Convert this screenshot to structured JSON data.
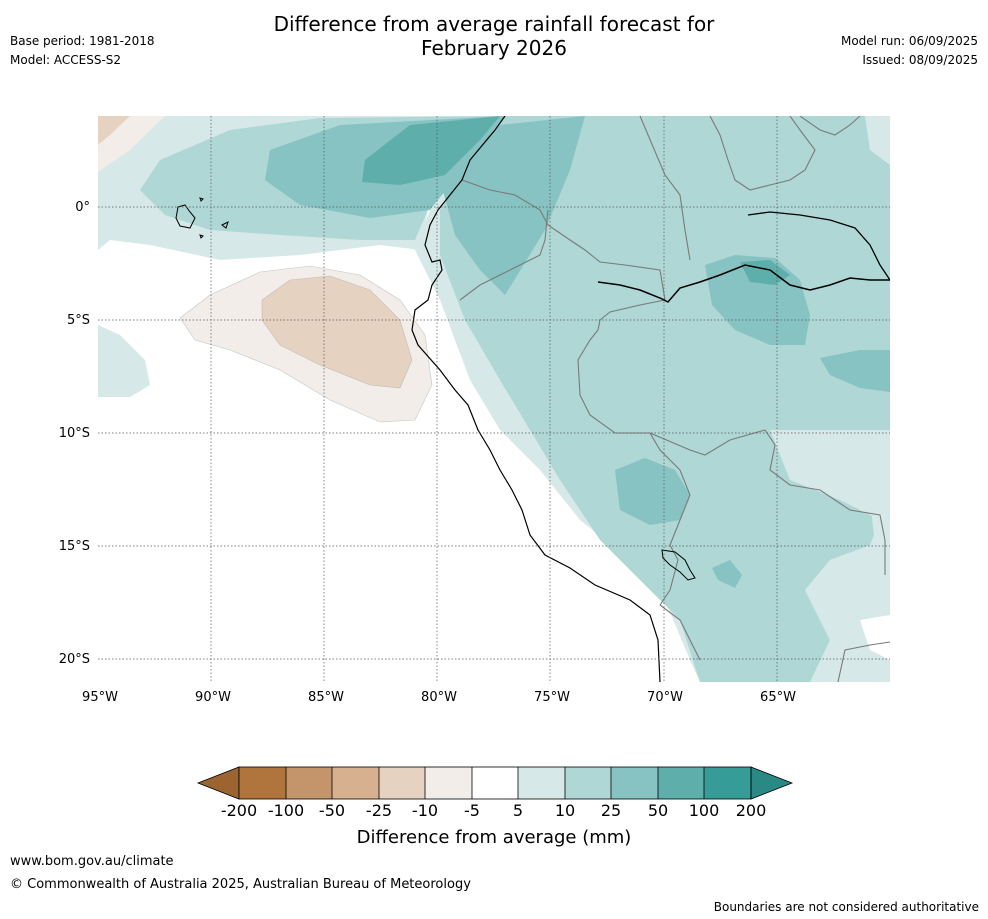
{
  "header": {
    "title_line1": "Difference from average rainfall forecast for",
    "title_line2": "February 2026",
    "base_period": "Base period: 1981-2018",
    "model": "Model: ACCESS-S2",
    "model_run": "Model run: 06/09/2025",
    "issued": "Issued: 08/09/2025"
  },
  "map": {
    "lon_labels": [
      "95°W",
      "90°W",
      "85°W",
      "80°W",
      "75°W",
      "70°W",
      "65°W"
    ],
    "lat_labels": [
      "0°",
      "5°S",
      "10°S",
      "15°S",
      "20°S"
    ]
  },
  "legend": {
    "title": "Difference from average (mm)",
    "tick_labels": [
      "-200",
      "-100",
      "-50",
      "-25",
      "-10",
      "-5",
      "5",
      "10",
      "25",
      "50",
      "100",
      "200"
    ],
    "colors": {
      "extend_low": "#9c6431",
      "lt_-100": "#b0753c",
      "-100_-50": "#c4956b",
      "-50_-25": "#d6b08f",
      "-25_-10": "#e6d2c0",
      "-10_-5": "#f2ede8",
      "-5_5": "#ffffff",
      "5_10": "#d6e9e8",
      "10_25": "#aed7d6",
      "25_50": "#86c3c2",
      "50_100": "#5eaeac",
      "100_200": "#369c98",
      "extend_high": "#2a8985"
    }
  },
  "footer": {
    "url": "www.bom.gov.au/climate",
    "copyright": "© Commonwealth of Australia 2025, Australian Bureau of Meteorology",
    "disclaimer": "Boundaries are not considered authoritative"
  }
}
